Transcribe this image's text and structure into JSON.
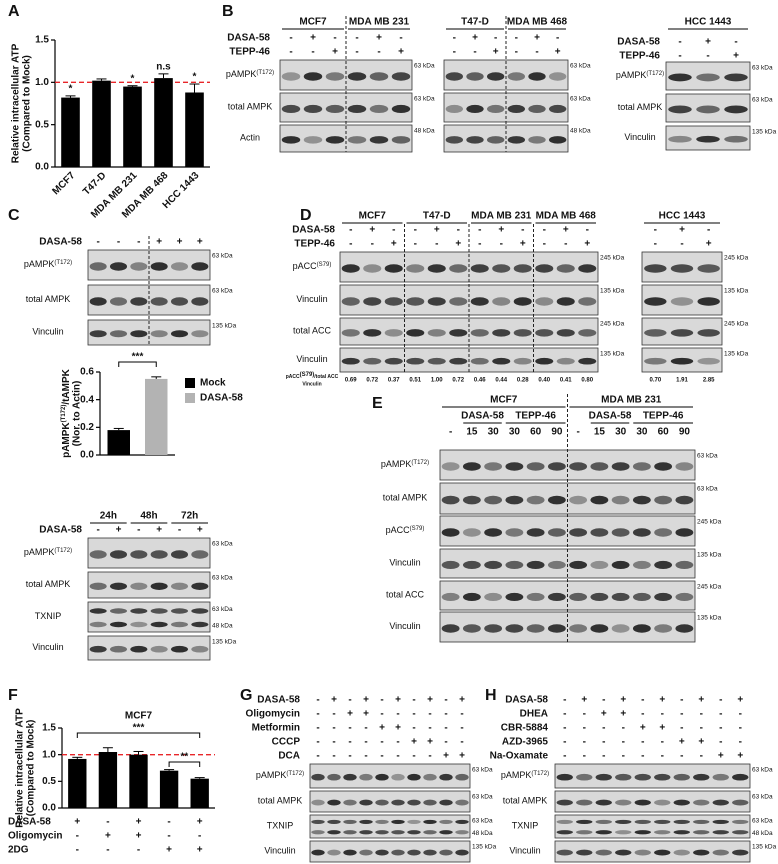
{
  "panel_labels": [
    "A",
    "B",
    "C",
    "D",
    "E",
    "F",
    "G",
    "H"
  ],
  "chart_data": [
    {
      "type": "bar",
      "y_label": [
        "Relative intracellular ATP",
        "(Compared to Mock)"
      ],
      "categories": [
        "MCF7",
        "T47-D",
        "MDA MB 231",
        "MDA MB 468",
        "HCC 1443"
      ],
      "values": [
        0.82,
        1.02,
        0.95,
        1.05,
        0.88
      ],
      "errors": [
        0.02,
        0.02,
        0.01,
        0.05,
        0.1
      ],
      "annotations": [
        "*",
        null,
        "*",
        "n.s",
        "*"
      ],
      "color": "#000000",
      "ylim": [
        0,
        1.5
      ],
      "yticks": [
        {
          "value": 0,
          "label": "0.0"
        },
        0.5,
        {
          "value": 1,
          "label": "1.0"
        },
        1.5
      ],
      "reference_line": {
        "value": 1,
        "color": "#e8262a"
      }
    },
    {
      "type": "bar",
      "y_label": [
        "pAMPK",
        "(T172)",
        "/tAMPK",
        "(Nor. to Actin)"
      ],
      "series": [
        {
          "name": "Mock",
          "color": "#000000",
          "values": [
            0.18
          ],
          "errors": [
            0.012
          ]
        },
        {
          "name": "DASA-58",
          "color": "#b3b3b3",
          "values": [
            0.55
          ],
          "errors": [
            0.015
          ]
        }
      ],
      "significance": [
        "***"
      ],
      "ylim": [
        0,
        0.6
      ],
      "yticks": [
        {
          "value": 0,
          "label": "0.0"
        },
        0.2,
        0.4,
        0.6
      ]
    },
    {
      "type": "bar",
      "title": "MCF7",
      "y_label": [
        "Relative intracellular ATP",
        "(Compared to Mock)"
      ],
      "values": [
        0.92,
        1.05,
        1,
        0.7,
        0.55
      ],
      "errors": [
        0.03,
        0.08,
        0.06,
        0.02,
        0.02
      ],
      "color": "#000000",
      "conditions": [
        {
          "name": "DASA-58",
          "signs": [
            "+",
            "-",
            "+",
            "-",
            "+"
          ]
        },
        {
          "name": "Oligomycin",
          "signs": [
            "-",
            "+",
            "+",
            "-",
            "-"
          ]
        },
        {
          "name": "2DG",
          "signs": [
            "-",
            "-",
            "-",
            "+",
            "+"
          ]
        }
      ],
      "significance": [
        "***",
        "**"
      ],
      "ylim": [
        0,
        1.5
      ],
      "yticks": [
        {
          "value": 0,
          "label": "0.0"
        },
        0.5,
        {
          "value": 1,
          "label": "1.0"
        },
        1.5
      ],
      "reference_line": {
        "value": 1,
        "color": "#e8262a"
      }
    }
  ],
  "blots": [
    {
      "headers": [
        "MCF7",
        "MDA MB 231"
      ],
      "conditions": [
        {
          "name": "DASA-58",
          "signs": [
            "-",
            "+",
            "-",
            "-",
            "+",
            "-"
          ]
        },
        {
          "name": "TEPP-46",
          "signs": [
            "-",
            "-",
            "+",
            "-",
            "-",
            "+"
          ]
        }
      ],
      "rows": [
        {
          "name": "pAMPK",
          "sup": "(T172)",
          "kda": [
            "63 kDa"
          ]
        },
        {
          "name": "total AMPK",
          "kda": [
            "63 kDa"
          ]
        },
        {
          "name": "Actin",
          "kda": [
            "48 kDa"
          ]
        }
      ]
    },
    {
      "headers": [
        "T47-D",
        "MDA MB 468"
      ],
      "conditions": [
        {
          "signs": [
            "-",
            "+",
            "-",
            "-",
            "+",
            "-"
          ]
        },
        {
          "signs": [
            "-",
            "-",
            "+",
            "-",
            "-",
            "+"
          ]
        }
      ],
      "rows": [
        {
          "kda": [
            "63 kDa"
          ]
        },
        {
          "kda": [
            "63 kDa"
          ]
        },
        {
          "kda": [
            "48 kDa"
          ]
        }
      ]
    },
    {
      "headers": [
        "HCC 1443"
      ],
      "conditions": [
        {
          "name": "DASA-58",
          "signs": [
            "-",
            "+",
            "-"
          ]
        },
        {
          "name": "TEPP-46",
          "signs": [
            "-",
            "-",
            "+"
          ]
        }
      ],
      "rows": [
        {
          "name": "pAMPK",
          "sup": "(T172)",
          "kda": [
            "63 kDa"
          ]
        },
        {
          "name": "total AMPK",
          "kda": [
            "63 kDa"
          ]
        },
        {
          "name": "Vinculin",
          "kda": [
            "135 kDa"
          ]
        }
      ]
    },
    {
      "conditions": [
        {
          "name": "DASA-58",
          "signs": [
            "-",
            "-",
            "-",
            "+",
            "+",
            "+"
          ]
        }
      ],
      "rows": [
        {
          "name": "pAMPK",
          "sup": "(T172)",
          "kda": [
            "63 kDa"
          ]
        },
        {
          "name": "total AMPK",
          "kda": [
            "63 kDa"
          ]
        },
        {
          "name": "Vinculin",
          "kda": [
            "135 kDa"
          ]
        }
      ]
    },
    {
      "headers": [
        "24h",
        "48h",
        "72h"
      ],
      "conditions": [
        {
          "name": "DASA-58",
          "signs": [
            "-",
            "+",
            "-",
            "+",
            "-",
            "+"
          ]
        }
      ],
      "rows": [
        {
          "name": "pAMPK",
          "sup": "(T172)",
          "kda": [
            "63 kDa"
          ]
        },
        {
          "name": "total AMPK",
          "kda": [
            "63 kDa"
          ]
        },
        {
          "name": "TXNIP",
          "kda": [
            "63 kDa",
            "48 kDa"
          ]
        },
        {
          "name": "Vinculin",
          "kda": [
            "135 kDa"
          ]
        }
      ]
    },
    {
      "headers": [
        "MCF7",
        "T47-D",
        "MDA MB 231",
        "MDA MB 468"
      ],
      "conditions": [
        {
          "name": "DASA-58",
          "signs": [
            "-",
            "+",
            "-",
            "-",
            "+",
            "-",
            "-",
            "+",
            "-",
            "-",
            "+",
            "-"
          ]
        },
        {
          "name": "TEPP-46",
          "signs": [
            "-",
            "-",
            "+",
            "-",
            "-",
            "+",
            "-",
            "-",
            "+",
            "-",
            "-",
            "+"
          ]
        }
      ],
      "rows": [
        {
          "name": "pACC",
          "sup": "(S79)",
          "kda": [
            "245 kDa"
          ]
        },
        {
          "name": "Vinculin",
          "kda": [
            "135 kDa"
          ]
        },
        {
          "name": "total ACC",
          "kda": [
            "245 kDa"
          ]
        },
        {
          "name": "Vinculin",
          "kda": [
            "135 kDa"
          ]
        }
      ],
      "ratio_label": [
        "pACC",
        "(S79)",
        "/total ACC",
        "Vinculin"
      ],
      "ratios": [
        "0.69",
        "0.72",
        "0.37",
        "0.51",
        "1.00",
        "0.72",
        "0.46",
        "0.44",
        "0.28",
        "0.40",
        "0.41",
        "0.80"
      ]
    },
    {
      "headers": [
        "HCC 1443"
      ],
      "conditions": [
        {
          "signs": [
            "-",
            "+",
            "-"
          ]
        },
        {
          "signs": [
            "-",
            "-",
            "+"
          ]
        }
      ],
      "rows": [
        {
          "kda": [
            "245 kDa"
          ]
        },
        {
          "kda": [
            "135 kDa"
          ]
        },
        {
          "kda": [
            "245 kDa"
          ]
        },
        {
          "kda": [
            "135 kDa"
          ]
        }
      ],
      "ratios": [
        "0.70",
        "1.91",
        "2.85"
      ]
    },
    {
      "headers": [
        "MCF7",
        "MDA MB 231"
      ],
      "subheaders": [
        "DASA-58",
        "TEPP-46",
        "DASA-58",
        "TEPP-46"
      ],
      "lane_labels": [
        "-",
        "15",
        "30",
        "30",
        "60",
        "90",
        "-",
        "15",
        "30",
        "30",
        "60",
        "90"
      ],
      "rows": [
        {
          "name": "pAMPK",
          "sup": "(T172)",
          "kda": [
            "63 kDa"
          ]
        },
        {
          "name": "total AMPK",
          "kda": [
            "63 kDa"
          ]
        },
        {
          "name": "pACC",
          "sup": "(S79)",
          "kda": [
            "245 kDa"
          ]
        },
        {
          "name": "Vinculin",
          "kda": [
            "135 kDa"
          ]
        },
        {
          "name": "total ACC",
          "kda": [
            "245 kDa"
          ]
        },
        {
          "name": "Vinculin",
          "kda": [
            "135 kDa"
          ]
        }
      ]
    },
    {
      "conditions": [
        {
          "name": "DASA-58",
          "signs": [
            "-",
            "+",
            "-",
            "+",
            "-",
            "+",
            "-",
            "+",
            "-",
            "+"
          ]
        },
        {
          "name": "Oligomycin",
          "signs": [
            "-",
            "-",
            "+",
            "+",
            "-",
            "-",
            "-",
            "-",
            "-",
            "-"
          ]
        },
        {
          "name": "Metformin",
          "signs": [
            "-",
            "-",
            "-",
            "-",
            "+",
            "+",
            "-",
            "-",
            "-",
            "-"
          ]
        },
        {
          "name": "CCCP",
          "signs": [
            "-",
            "-",
            "-",
            "-",
            "-",
            "-",
            "+",
            "+",
            "-",
            "-"
          ]
        },
        {
          "name": "DCA",
          "signs": [
            "-",
            "-",
            "-",
            "-",
            "-",
            "-",
            "-",
            "-",
            "+",
            "+"
          ]
        }
      ],
      "rows": [
        {
          "name": "pAMPK",
          "sup": "(T172)",
          "kda": [
            "63 kDa"
          ]
        },
        {
          "name": "total AMPK",
          "kda": [
            "63 kDa"
          ]
        },
        {
          "name": "TXNIP",
          "kda": [
            "63 kDa",
            "48 kDa"
          ]
        },
        {
          "name": "Vinculin",
          "kda": [
            "135 kDa"
          ]
        }
      ]
    },
    {
      "conditions": [
        {
          "name": "DASA-58",
          "signs": [
            "-",
            "+",
            "-",
            "+",
            "-",
            "+",
            "-",
            "+",
            "-",
            "+"
          ]
        },
        {
          "name": "DHEA",
          "signs": [
            "-",
            "-",
            "+",
            "+",
            "-",
            "-",
            "-",
            "-",
            "-",
            "-"
          ]
        },
        {
          "name": "CBR-5884",
          "signs": [
            "-",
            "-",
            "-",
            "-",
            "+",
            "+",
            "-",
            "-",
            "-",
            "-"
          ]
        },
        {
          "name": "AZD-3965",
          "signs": [
            "-",
            "-",
            "-",
            "-",
            "-",
            "-",
            "+",
            "+",
            "-",
            "-"
          ]
        },
        {
          "name": "Na-Oxamate",
          "signs": [
            "-",
            "-",
            "-",
            "-",
            "-",
            "-",
            "-",
            "-",
            "+",
            "+"
          ]
        }
      ],
      "rows": [
        {
          "name": "pAMPK",
          "sup": "(T172)",
          "kda": [
            "63 kDa"
          ]
        },
        {
          "name": "total AMPK",
          "kda": [
            "63 kDa"
          ]
        },
        {
          "name": "TXNIP",
          "kda": [
            "63 kDa",
            "48 kDa"
          ]
        },
        {
          "name": "Vinculin",
          "kda": [
            "135 kDa"
          ]
        }
      ]
    }
  ]
}
